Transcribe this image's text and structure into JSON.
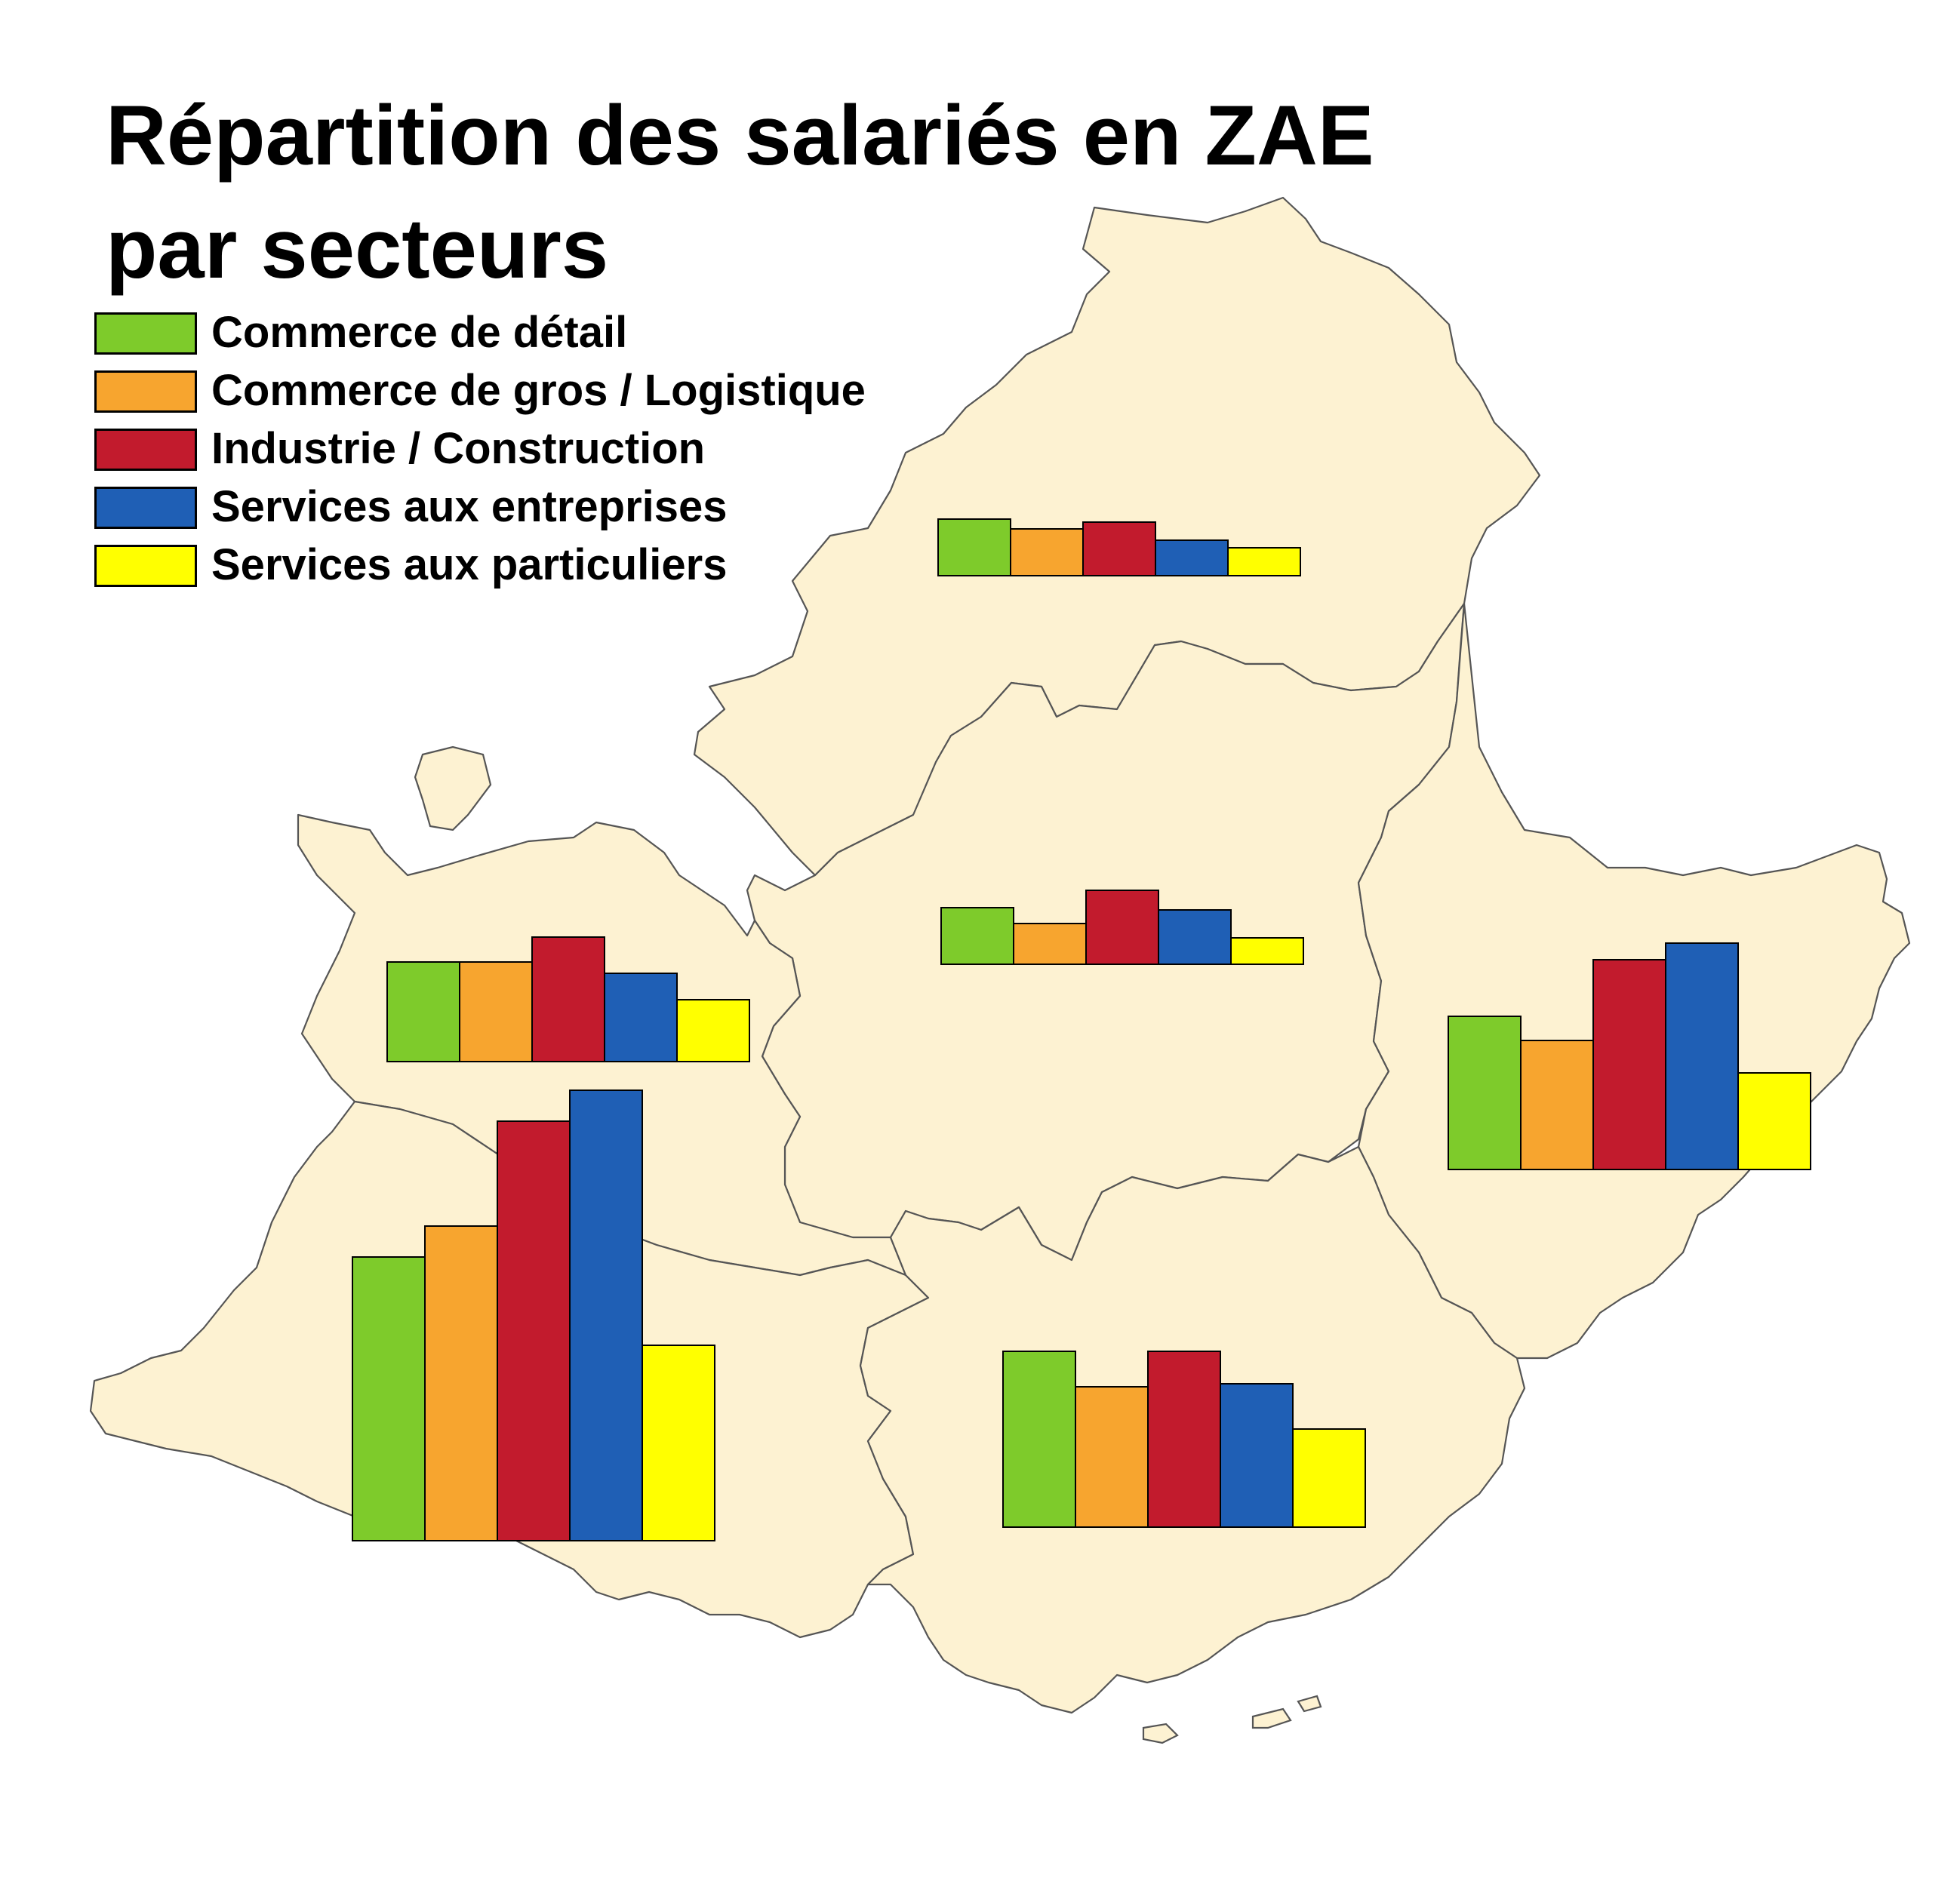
{
  "title": {
    "line1": "Répartition des salariés en ZAE",
    "line2": "par secteurs"
  },
  "legend": {
    "items": [
      {
        "label": "Commerce de détail",
        "color": "#7ecb2b"
      },
      {
        "label": "Commerce de gros / Logistique",
        "color": "#f7a52f"
      },
      {
        "label": "Industrie / Construction",
        "color": "#c21b2d"
      },
      {
        "label": "Services aux entreprises",
        "color": "#1f5fb5"
      },
      {
        "label": "Services aux particuliers",
        "color": "#ffff00"
      }
    ]
  },
  "map": {
    "land_color": "#fdf2d2",
    "border_color": "#555555"
  },
  "chart_data": {
    "type": "bar",
    "categories": [
      "Commerce de détail",
      "Commerce de gros / Logistique",
      "Industrie / Construction",
      "Services aux entreprises",
      "Services aux particuliers"
    ],
    "colors": [
      "#7ecb2b",
      "#f7a52f",
      "#c21b2d",
      "#1f5fb5",
      "#ffff00"
    ],
    "unit": "relative",
    "charts": [
      {
        "region": "north",
        "values": [
          7.5,
          6.2,
          7.1,
          4.7,
          3.7
        ]
      },
      {
        "region": "centre",
        "values": [
          7.5,
          5.4,
          9.8,
          7.2,
          3.5
        ]
      },
      {
        "region": "west",
        "values": [
          13.2,
          13.2,
          16.5,
          11.7,
          8.2
        ]
      },
      {
        "region": "south-west",
        "values": [
          37.6,
          41.7,
          55.6,
          59.7,
          25.9
        ]
      },
      {
        "region": "south",
        "values": [
          23.3,
          18.6,
          23.3,
          19.0,
          13.0
        ]
      },
      {
        "region": "east",
        "values": [
          20.3,
          17.1,
          27.8,
          30.0,
          12.8
        ]
      }
    ]
  }
}
